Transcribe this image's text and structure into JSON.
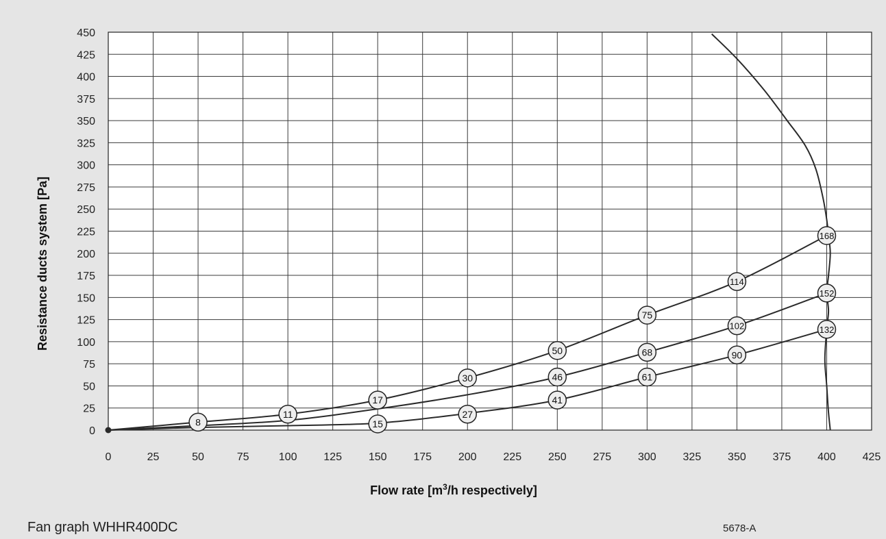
{
  "chart_data": {
    "type": "line",
    "xlabel": {
      "prefix": "Flow rate [m",
      "sup": "3",
      "suffix": "/h respectively]"
    },
    "ylabel": "Resistance ducts system [Pa]",
    "xlim": [
      0,
      425
    ],
    "ylim": [
      0,
      450
    ],
    "x_ticks": [
      0,
      25,
      50,
      75,
      100,
      125,
      150,
      175,
      200,
      225,
      250,
      275,
      300,
      325,
      350,
      375,
      400,
      425
    ],
    "y_ticks": [
      0,
      25,
      50,
      75,
      100,
      125,
      150,
      175,
      200,
      225,
      250,
      275,
      300,
      325,
      350,
      375,
      400,
      425,
      450
    ],
    "grid": true,
    "series": [
      {
        "points": [
          [
            0,
            0
          ],
          [
            50,
            9
          ],
          [
            100,
            18
          ],
          [
            150,
            34
          ],
          [
            200,
            59
          ],
          [
            250,
            90
          ],
          [
            300,
            130
          ],
          [
            350,
            168
          ],
          [
            400,
            220
          ]
        ],
        "markers": [
          {
            "x": 50,
            "y": 9,
            "label": "8"
          },
          {
            "x": 100,
            "y": 18,
            "label": "11"
          },
          {
            "x": 150,
            "y": 34,
            "label": "17"
          },
          {
            "x": 200,
            "y": 59,
            "label": "30"
          },
          {
            "x": 250,
            "y": 90,
            "label": "50"
          },
          {
            "x": 300,
            "y": 130,
            "label": "75"
          },
          {
            "x": 350,
            "y": 168,
            "label": "114"
          },
          {
            "x": 400,
            "y": 220,
            "label": "168"
          }
        ]
      },
      {
        "points": [
          [
            0,
            0
          ],
          [
            50,
            5
          ],
          [
            100,
            11
          ],
          [
            150,
            24
          ],
          [
            200,
            40
          ],
          [
            250,
            60
          ],
          [
            300,
            88
          ],
          [
            350,
            118
          ],
          [
            400,
            155
          ]
        ],
        "markers": [
          {
            "x": 250,
            "y": 60,
            "label": "46"
          },
          {
            "x": 300,
            "y": 88,
            "label": "68"
          },
          {
            "x": 350,
            "y": 118,
            "label": "102"
          },
          {
            "x": 400,
            "y": 155,
            "label": "152"
          }
        ]
      },
      {
        "points": [
          [
            0,
            0
          ],
          [
            50,
            3
          ],
          [
            100,
            5
          ],
          [
            150,
            8
          ],
          [
            200,
            19
          ],
          [
            250,
            34
          ],
          [
            300,
            60
          ],
          [
            350,
            85
          ],
          [
            400,
            114
          ]
        ],
        "markers": [
          {
            "x": 150,
            "y": 7,
            "label": "15"
          },
          {
            "x": 200,
            "y": 18,
            "label": "27"
          },
          {
            "x": 250,
            "y": 34,
            "label": "41"
          },
          {
            "x": 300,
            "y": 60,
            "label": "61"
          },
          {
            "x": 350,
            "y": 85,
            "label": "90"
          },
          {
            "x": 400,
            "y": 114,
            "label": "132"
          }
        ]
      }
    ],
    "fan_curve": [
      [
        336,
        448
      ],
      [
        350,
        420
      ],
      [
        365,
        385
      ],
      [
        378,
        350
      ],
      [
        388,
        322
      ],
      [
        394,
        295
      ],
      [
        398,
        262
      ],
      [
        400,
        238
      ],
      [
        401,
        220
      ],
      [
        402,
        200
      ],
      [
        401,
        175
      ],
      [
        400,
        155
      ],
      [
        401,
        135
      ],
      [
        400,
        114
      ],
      [
        399,
        80
      ],
      [
        400,
        50
      ],
      [
        401,
        20
      ],
      [
        402,
        0
      ]
    ]
  },
  "footer": {
    "caption": "Fan graph WHHR400DC",
    "code": "5678-A"
  }
}
